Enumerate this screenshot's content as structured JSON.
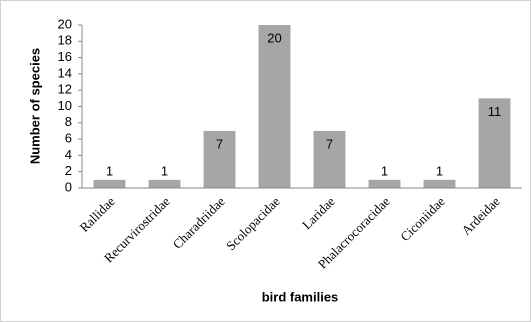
{
  "chart_data": {
    "type": "bar",
    "categories": [
      "Rallidae",
      "Recurvirostridae",
      "Charadriidae",
      "Scolopacidae",
      "Laridae",
      "Phalacrocoracidae",
      "Ciconiidae",
      "Ardeidae"
    ],
    "values": [
      1,
      1,
      7,
      20,
      7,
      1,
      1,
      11
    ],
    "color": "#a6a6a6",
    "ylabel": "Number of species",
    "xlabel": "bird families",
    "ylim": [
      0,
      20
    ],
    "yticks": [
      0,
      2,
      4,
      6,
      8,
      10,
      12,
      14,
      16,
      18,
      20
    ],
    "grid": false
  }
}
